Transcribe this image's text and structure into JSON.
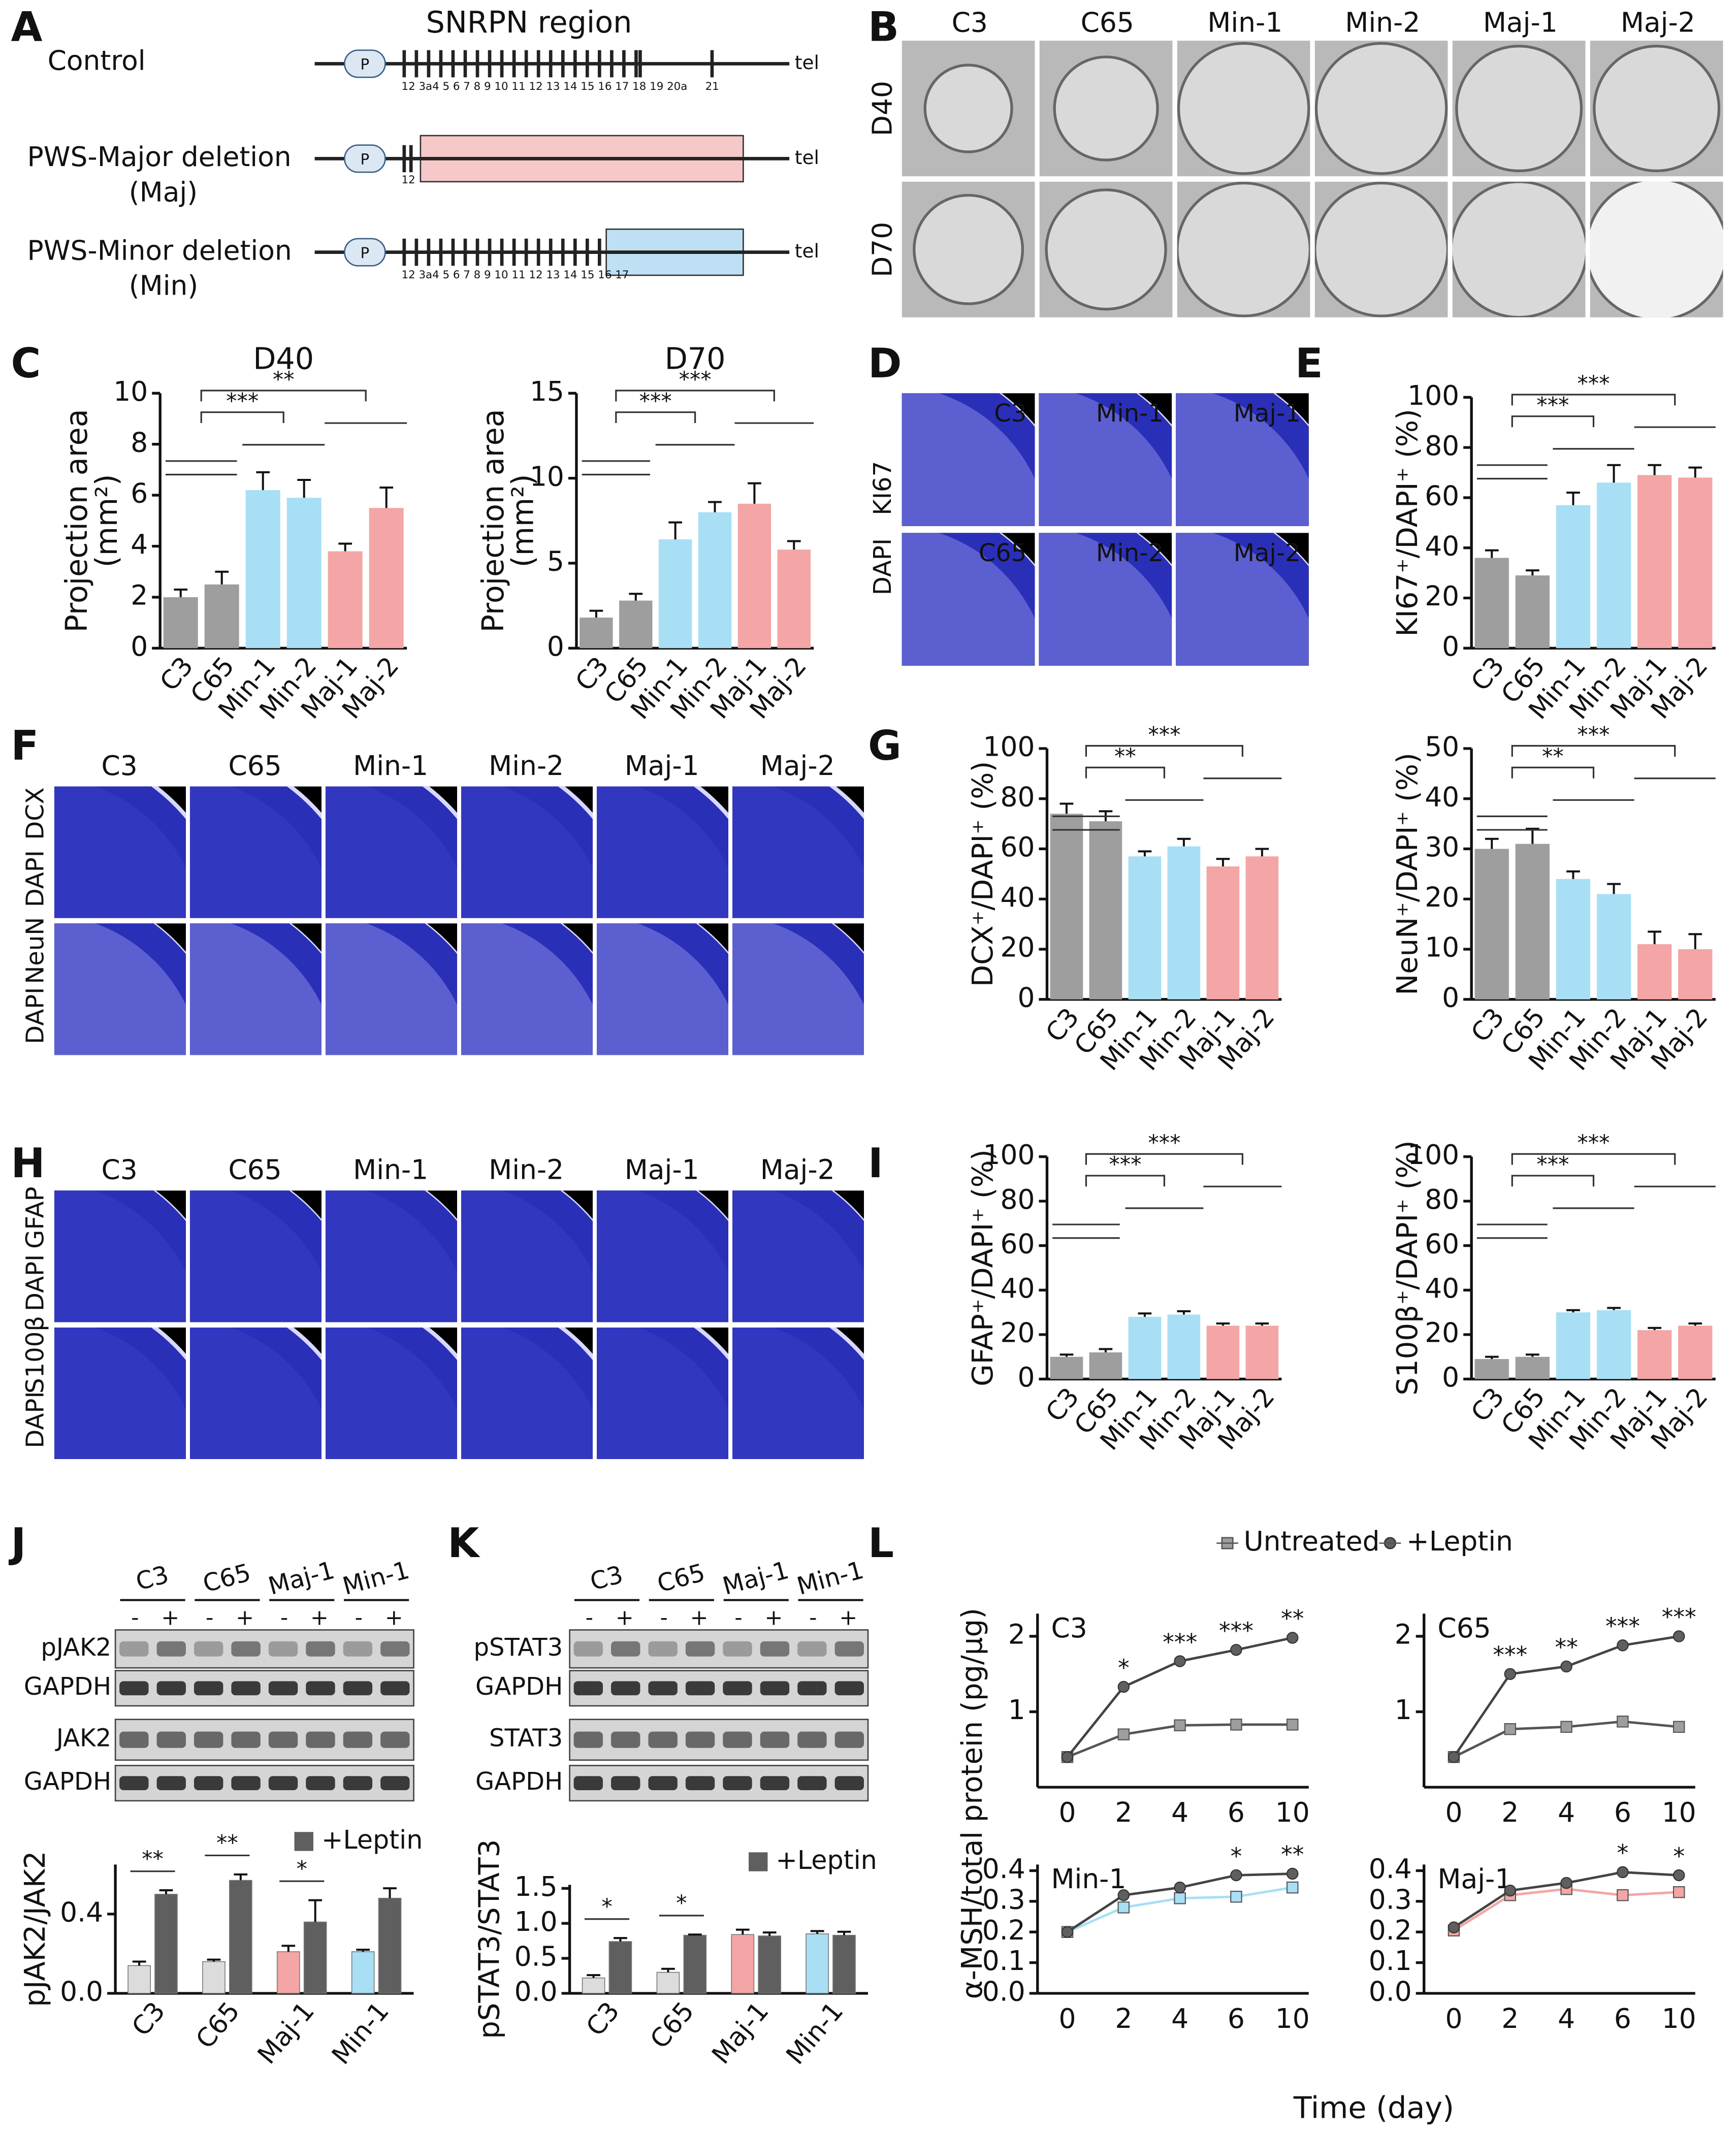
{
  "panel_labels": [
    "A",
    "B",
    "C",
    "D",
    "E",
    "F",
    "G",
    "H",
    "I",
    "J",
    "K",
    "L"
  ],
  "panel_a": {
    "title": "SNRPN region",
    "promoter": "P",
    "telomere": "tel",
    "rows": [
      {
        "label": "Control",
        "numbers": "12 3a4 5 6 7 8 9 10 11 12  13 14 15 16 17 18 19 20a",
        "extra": "21"
      },
      {
        "label": "PWS-Major deletion",
        "sublabel": "(Maj)",
        "numbers": "12"
      },
      {
        "label": "PWS-Minor deletion",
        "sublabel": "(Min)",
        "numbers": "12 3a4 5 6 7 8 9 10 11 12  13 14 15 16 17"
      }
    ]
  },
  "panel_b": {
    "columns": [
      "C3",
      "C65",
      "Min-1",
      "Min-2",
      "Maj-1",
      "Maj-2"
    ],
    "rows": [
      "D40",
      "D70"
    ]
  },
  "panel_d": {
    "labels": [
      "C3",
      "Min-1",
      "Maj-1",
      "C65",
      "Min-2",
      "Maj-2"
    ],
    "stains": [
      "DAPI",
      "KI67"
    ]
  },
  "panel_f": {
    "columns": [
      "C3",
      "C65",
      "Min-1",
      "Min-2",
      "Maj-1",
      "Maj-2"
    ],
    "stains": [
      [
        "DAPI",
        "DCX"
      ],
      [
        "DAPI",
        "NeuN"
      ]
    ]
  },
  "panel_h": {
    "columns": [
      "C3",
      "C65",
      "Min-1",
      "Min-2",
      "Maj-1",
      "Maj-2"
    ],
    "stains": [
      [
        "DAPI",
        "GFAP"
      ],
      [
        "DAPI",
        "S100β"
      ]
    ]
  },
  "panel_j": {
    "lanes": [
      "C3",
      "C65",
      "Maj-1",
      "Min-1"
    ],
    "treatments": [
      "-",
      "+"
    ],
    "rows": [
      "pJAK2",
      "GAPDH",
      "JAK2",
      "GAPDH"
    ]
  },
  "panel_k": {
    "lanes": [
      "C3",
      "C65",
      "Maj-1",
      "Min-1"
    ],
    "treatments": [
      "-",
      "+"
    ],
    "rows": [
      "pSTAT3",
      "GAPDH",
      "STAT3",
      "GAPDH"
    ]
  },
  "panel_l": {
    "y_label": "α-MSH/total protein (pg/μg)",
    "x_label": "Time (day)"
  },
  "chart_data": [
    {
      "type": "bar",
      "title": "D40",
      "y_label": [
        "Projection area",
        "(mm²)"
      ],
      "categories": [
        "C3",
        "C65",
        "Min-1",
        "Min-2",
        "Maj-1",
        "Maj-2"
      ],
      "values": [
        2.0,
        2.5,
        6.2,
        5.9,
        3.8,
        5.5
      ],
      "errors": [
        0.3,
        0.5,
        0.7,
        0.7,
        0.3,
        0.8
      ],
      "colors": [
        "#9e9e9e",
        "#9e9e9e",
        "#a8dff5",
        "#a8dff5",
        "#f4a5a5",
        "#f4a5a5"
      ],
      "ylim": [
        0,
        10
      ],
      "yticks": [
        0,
        2,
        4,
        6,
        8,
        10
      ],
      "annotations": [
        "***",
        "**"
      ]
    },
    {
      "type": "bar",
      "title": "D70",
      "y_label": [
        "Projection area",
        "(mm²)"
      ],
      "categories": [
        "C3",
        "C65",
        "Min-1",
        "Min-2",
        "Maj-1",
        "Maj-2"
      ],
      "values": [
        1.8,
        2.8,
        6.4,
        8.0,
        8.5,
        5.8
      ],
      "errors": [
        0.4,
        0.4,
        1.0,
        0.6,
        1.2,
        0.5
      ],
      "colors": [
        "#9e9e9e",
        "#9e9e9e",
        "#a8dff5",
        "#a8dff5",
        "#f4a5a5",
        "#f4a5a5"
      ],
      "ylim": [
        0,
        15
      ],
      "yticks": [
        0,
        5,
        10,
        15
      ],
      "annotations": [
        "***",
        "***"
      ]
    },
    {
      "type": "bar",
      "y_label": "KI67⁺/DAPI⁺ (%)",
      "categories": [
        "C3",
        "C65",
        "Min-1",
        "Min-2",
        "Maj-1",
        "Maj-2"
      ],
      "values": [
        36,
        29,
        57,
        66,
        69,
        68
      ],
      "errors": [
        3,
        2,
        5,
        7,
        4,
        4
      ],
      "colors": [
        "#9e9e9e",
        "#9e9e9e",
        "#a8dff5",
        "#a8dff5",
        "#f4a5a5",
        "#f4a5a5"
      ],
      "ylim": [
        0,
        100
      ],
      "yticks": [
        0,
        20,
        40,
        60,
        80,
        100
      ],
      "annotations": [
        "***",
        "***"
      ]
    },
    {
      "type": "bar",
      "y_label": "DCX⁺/DAPI⁺ (%)",
      "categories": [
        "C3",
        "C65",
        "Min-1",
        "Min-2",
        "Maj-1",
        "Maj-2"
      ],
      "values": [
        74,
        71,
        57,
        61,
        53,
        57
      ],
      "errors": [
        4,
        4,
        2,
        3,
        3,
        3
      ],
      "colors": [
        "#9e9e9e",
        "#9e9e9e",
        "#a8dff5",
        "#a8dff5",
        "#f4a5a5",
        "#f4a5a5"
      ],
      "ylim": [
        0,
        100
      ],
      "yticks": [
        0,
        20,
        40,
        60,
        80,
        100
      ],
      "annotations": [
        "**",
        "***"
      ]
    },
    {
      "type": "bar",
      "y_label": "NeuN⁺/DAPI⁺ (%)",
      "categories": [
        "C3",
        "C65",
        "Min-1",
        "Min-2",
        "Maj-1",
        "Maj-2"
      ],
      "values": [
        30,
        31,
        24,
        21,
        11,
        10
      ],
      "errors": [
        2,
        3,
        1.5,
        2,
        2.5,
        3
      ],
      "colors": [
        "#9e9e9e",
        "#9e9e9e",
        "#a8dff5",
        "#a8dff5",
        "#f4a5a5",
        "#f4a5a5"
      ],
      "ylim": [
        0,
        50
      ],
      "yticks": [
        0,
        10,
        20,
        30,
        40,
        50
      ],
      "annotations": [
        "**",
        "***"
      ]
    },
    {
      "type": "bar",
      "y_label": "GFAP⁺/DAPI⁺ (%)",
      "categories": [
        "C3",
        "C65",
        "Min-1",
        "Min-2",
        "Maj-1",
        "Maj-2"
      ],
      "values": [
        10,
        12,
        28,
        29,
        24,
        24
      ],
      "errors": [
        1,
        1.5,
        1.5,
        1.5,
        1,
        1
      ],
      "colors": [
        "#9e9e9e",
        "#9e9e9e",
        "#a8dff5",
        "#a8dff5",
        "#f4a5a5",
        "#f4a5a5"
      ],
      "ylim": [
        0,
        100
      ],
      "yticks": [
        0,
        20,
        40,
        60,
        80,
        100
      ],
      "annotations": [
        "***",
        "***"
      ]
    },
    {
      "type": "bar",
      "y_label": "S100β⁺/DAPI⁺ (%)",
      "categories": [
        "C3",
        "C65",
        "Min-1",
        "Min-2",
        "Maj-1",
        "Maj-2"
      ],
      "values": [
        9,
        10,
        30,
        31,
        22,
        24
      ],
      "errors": [
        1,
        1,
        1,
        1,
        1,
        1
      ],
      "colors": [
        "#9e9e9e",
        "#9e9e9e",
        "#a8dff5",
        "#a8dff5",
        "#f4a5a5",
        "#f4a5a5"
      ],
      "ylim": [
        0,
        100
      ],
      "yticks": [
        0,
        20,
        40,
        60,
        80,
        100
      ],
      "annotations": [
        "***",
        "***"
      ]
    },
    {
      "type": "bar",
      "y_label": "pJAK2/JAK2",
      "categories": [
        "C3",
        "C65",
        "Maj-1",
        "Min-1"
      ],
      "series": [
        {
          "colors": [
            "#dcdcdc",
            "#dcdcdc",
            "#f4a5a5",
            "#a8dff5"
          ],
          "values": [
            0.14,
            0.16,
            0.21,
            0.21
          ],
          "errors": [
            0.02,
            0.01,
            0.03,
            0.01
          ]
        },
        {
          "name": "+Leptin",
          "color": "#5f5f5f",
          "values": [
            0.5,
            0.57,
            0.36,
            0.48
          ],
          "errors": [
            0.02,
            0.03,
            0.11,
            0.05
          ]
        }
      ],
      "ylim": [
        0,
        0.65
      ],
      "yticks": [
        {
          "value": 0,
          "label": "0.0"
        },
        0.4
      ],
      "annotations": [
        "**",
        "**",
        "*",
        null
      ]
    },
    {
      "type": "bar",
      "y_label": "pSTAT3/STAT3",
      "categories": [
        "C3",
        "C65",
        "Maj-1",
        "Min-1"
      ],
      "series": [
        {
          "colors": [
            "#dcdcdc",
            "#dcdcdc",
            "#f4a5a5",
            "#a8dff5"
          ],
          "values": [
            0.22,
            0.3,
            0.84,
            0.85
          ],
          "errors": [
            0.04,
            0.05,
            0.07,
            0.04
          ]
        },
        {
          "name": "+Leptin",
          "color": "#5f5f5f",
          "values": [
            0.74,
            0.83,
            0.82,
            0.83
          ],
          "errors": [
            0.05,
            0.01,
            0.05,
            0.05
          ]
        }
      ],
      "ylim": [
        0,
        1.55
      ],
      "yticks": [
        {
          "value": 0,
          "label": "0.0"
        },
        0.5,
        {
          "value": 1,
          "label": "1.0"
        },
        1.5
      ],
      "annotations": [
        "*",
        "*",
        null,
        null
      ]
    },
    {
      "type": "line",
      "title": "C3",
      "categories": [
        "0",
        "2",
        "4",
        "6",
        "10"
      ],
      "series": [
        {
          "name": "Untreated",
          "color": "#9e9e9e",
          "marker": "square",
          "values": [
            0.4,
            0.7,
            0.82,
            0.83,
            0.83
          ]
        },
        {
          "name": "+Leptin",
          "color": "#5f5f5f",
          "marker": "circle",
          "values": [
            0.4,
            1.33,
            1.67,
            1.82,
            1.98
          ]
        }
      ],
      "ylim": [
        0,
        2.3
      ],
      "yticks": [
        1,
        2
      ],
      "annotations": [
        null,
        "*",
        "***",
        "***",
        "**"
      ]
    },
    {
      "type": "line",
      "title": "C65",
      "categories": [
        "0",
        "2",
        "4",
        "6",
        "10"
      ],
      "series": [
        {
          "color": "#9e9e9e",
          "marker": "square",
          "values": [
            0.4,
            0.77,
            0.8,
            0.87,
            0.8
          ]
        },
        {
          "color": "#5f5f5f",
          "marker": "circle",
          "values": [
            0.4,
            1.5,
            1.6,
            1.88,
            2.0
          ]
        }
      ],
      "ylim": [
        0,
        2.3
      ],
      "yticks": [
        1,
        2
      ],
      "annotations": [
        null,
        "***",
        "**",
        "***",
        "***"
      ]
    },
    {
      "type": "line",
      "title": "Min-1",
      "categories": [
        "0",
        "2",
        "4",
        "6",
        "10"
      ],
      "series": [
        {
          "color": "#a8dff5",
          "marker": "square",
          "values": [
            0.2,
            0.28,
            0.31,
            0.315,
            0.345
          ]
        },
        {
          "color": "#5f5f5f",
          "marker": "circle",
          "values": [
            0.2,
            0.32,
            0.345,
            0.385,
            0.39
          ]
        }
      ],
      "ylim": [
        0,
        0.42
      ],
      "yticks": [
        {
          "value": 0,
          "label": "0.0"
        },
        0.1,
        0.2,
        0.3,
        0.4
      ],
      "annotations": [
        null,
        null,
        null,
        "*",
        "**"
      ]
    },
    {
      "type": "line",
      "title": "Maj-1",
      "categories": [
        "0",
        "2",
        "4",
        "6",
        "10"
      ],
      "series": [
        {
          "color": "#f4a5a5",
          "marker": "square",
          "values": [
            0.205,
            0.32,
            0.34,
            0.32,
            0.33
          ]
        },
        {
          "color": "#5f5f5f",
          "marker": "circle",
          "values": [
            0.215,
            0.335,
            0.36,
            0.395,
            0.385
          ]
        }
      ],
      "ylim": [
        0,
        0.42
      ],
      "yticks": [
        {
          "value": 0,
          "label": "0.0"
        },
        0.1,
        0.2,
        0.3,
        0.4
      ],
      "annotations": [
        null,
        null,
        null,
        "*",
        "*"
      ]
    }
  ]
}
